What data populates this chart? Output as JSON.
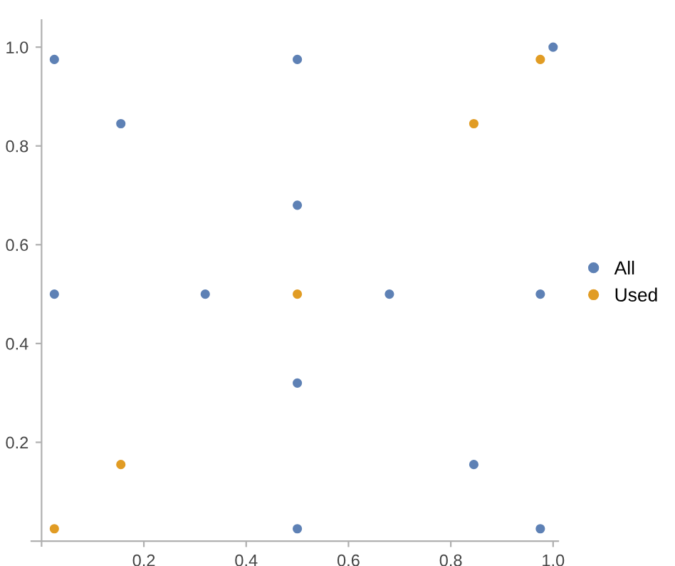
{
  "chart_data": {
    "type": "scatter",
    "legend": "right",
    "marker": "circle",
    "grid": false,
    "xlim": [
      -0.02,
      1.01
    ],
    "ylim": [
      -0.01,
      1.055
    ],
    "xticks": [
      0.2,
      0.4,
      0.6,
      0.8,
      {
        "value": 1.0,
        "label": "1.0"
      }
    ],
    "yticks": [
      0.2,
      0.4,
      0.6,
      0.8,
      {
        "value": 1.0,
        "label": "1.0"
      }
    ],
    "series": [
      {
        "name": "All",
        "color": "#5e81b5",
        "x": [
          0.025,
          0.5,
          1.0,
          0.155,
          0.5,
          0.025,
          0.32,
          0.68,
          0.975,
          0.5,
          0.845,
          0.5,
          0.975
        ],
        "values": [
          0.975,
          0.975,
          1.0,
          0.845,
          0.68,
          0.5,
          0.5,
          0.5,
          0.5,
          0.32,
          0.155,
          0.025,
          0.025
        ]
      },
      {
        "name": "Used",
        "color": "#e19c24",
        "x": [
          0.975,
          0.845,
          0.5,
          0.155,
          0.025
        ],
        "values": [
          0.975,
          0.845,
          0.5,
          0.155,
          0.025
        ]
      }
    ]
  }
}
